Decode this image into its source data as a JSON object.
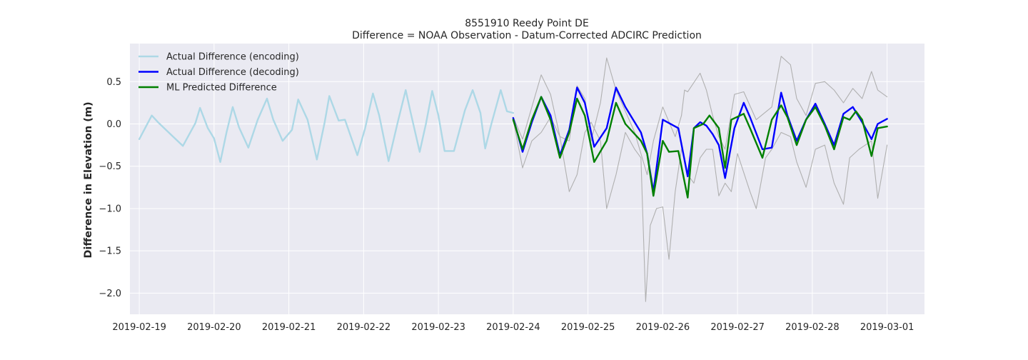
{
  "chart_data": {
    "type": "line",
    "title": "8551910 Reedy Point DE",
    "subtitle": "Difference = NOAA Observation - Datum-Corrected ADCIRC Prediction",
    "xlabel": "",
    "ylabel": "Difference in Elevation (m)",
    "x_unit": "date",
    "xlim": [
      "2019-02-18 21:00",
      "2019-03-01 12:00"
    ],
    "ylim": [
      -2.25,
      0.95
    ],
    "x_tick_labels": [
      "2019-02-19",
      "2019-02-20",
      "2019-02-21",
      "2019-02-22",
      "2019-02-23",
      "2019-02-24",
      "2019-02-25",
      "2019-02-26",
      "2019-02-27",
      "2019-02-28",
      "2019-03-01"
    ],
    "y_ticks": [
      0.5,
      0.0,
      -0.5,
      -1.0,
      -1.5,
      -2.0
    ],
    "y_tick_labels": [
      "0.5",
      "0.0",
      "−0.5",
      "−1.0",
      "−1.5",
      "−2.0"
    ],
    "grid": true,
    "legend_position": "top-left",
    "legend": [
      "Actual Difference (encoding)",
      "Actual Difference (decoding)",
      "ML Predicted Difference"
    ],
    "series": [
      {
        "name": "Actual Difference (encoding)",
        "color": "#add8e6",
        "x": [
          "2019-02-19 00:00",
          "2019-02-19 04:00",
          "2019-02-19 06:00",
          "2019-02-19 10:00",
          "2019-02-19 14:00",
          "2019-02-19 18:00",
          "2019-02-19 19:30",
          "2019-02-19 22:00",
          "2019-02-20 00:00",
          "2019-02-20 02:00",
          "2019-02-20 04:00",
          "2019-02-20 06:00",
          "2019-02-20 08:00",
          "2019-02-20 11:00",
          "2019-02-20 14:00",
          "2019-02-20 17:00",
          "2019-02-20 19:00",
          "2019-02-20 22:00",
          "2019-02-21 01:00",
          "2019-02-21 03:00",
          "2019-02-21 06:00",
          "2019-02-21 09:00",
          "2019-02-21 11:30",
          "2019-02-21 13:00",
          "2019-02-21 16:00",
          "2019-02-21 18:00",
          "2019-02-21 22:00",
          "2019-02-22 00:30",
          "2019-02-22 03:00",
          "2019-02-22 05:00",
          "2019-02-22 08:00",
          "2019-02-22 11:00",
          "2019-02-22 13:30",
          "2019-02-22 15:00",
          "2019-02-22 18:00",
          "2019-02-22 20:00",
          "2019-02-22 22:00",
          "2019-02-23 00:00",
          "2019-02-23 02:00",
          "2019-02-23 05:00",
          "2019-02-23 08:30",
          "2019-02-23 11:00",
          "2019-02-23 13:30",
          "2019-02-23 15:00",
          "2019-02-23 17:00",
          "2019-02-23 20:00",
          "2019-02-23 22:00",
          "2019-02-24 00:00"
        ],
        "y": [
          -0.18,
          0.1,
          0.02,
          -0.12,
          -0.26,
          0.01,
          0.19,
          -0.05,
          -0.17,
          -0.45,
          -0.1,
          0.2,
          -0.04,
          -0.28,
          0.05,
          0.3,
          0.05,
          -0.2,
          -0.07,
          0.29,
          0.05,
          -0.42,
          0.02,
          0.33,
          0.04,
          0.05,
          -0.37,
          -0.05,
          0.36,
          0.1,
          -0.44,
          0.03,
          0.4,
          0.15,
          -0.33,
          0.0,
          0.39,
          0.1,
          -0.32,
          -0.32,
          0.16,
          0.4,
          0.13,
          -0.29,
          0.0,
          0.4,
          0.15,
          0.13
        ]
      },
      {
        "name": "Actual Difference (decoding)",
        "color": "#0000ff",
        "x": [
          "2019-02-24 00:00",
          "2019-02-24 03:00",
          "2019-02-24 06:00",
          "2019-02-24 09:00",
          "2019-02-24 12:00",
          "2019-02-24 15:00",
          "2019-02-24 18:00",
          "2019-02-24 20:30",
          "2019-02-24 23:00",
          "2019-02-25 02:00",
          "2019-02-25 06:00",
          "2019-02-25 09:00",
          "2019-02-25 12:00",
          "2019-02-25 17:00",
          "2019-02-25 19:00",
          "2019-02-25 21:00",
          "2019-02-26 00:00",
          "2019-02-26 05:00",
          "2019-02-26 08:00",
          "2019-02-26 10:00",
          "2019-02-26 12:00",
          "2019-02-26 14:00",
          "2019-02-26 16:00",
          "2019-02-26 18:00",
          "2019-02-26 20:00",
          "2019-02-26 23:00",
          "2019-02-27 02:00",
          "2019-02-27 04:00",
          "2019-02-27 08:00",
          "2019-02-27 11:00",
          "2019-02-27 14:00",
          "2019-02-27 16:00",
          "2019-02-27 19:00",
          "2019-02-27 22:00",
          "2019-02-28 01:00",
          "2019-02-28 04:00",
          "2019-02-28 07:00",
          "2019-02-28 10:00",
          "2019-02-28 13:00",
          "2019-02-28 16:00",
          "2019-02-28 19:00",
          "2019-02-28 21:00",
          "2019-03-01 00:00"
        ],
        "y": [
          0.07,
          -0.33,
          0.02,
          0.32,
          0.1,
          -0.37,
          -0.07,
          0.43,
          0.25,
          -0.27,
          -0.05,
          0.43,
          0.2,
          -0.1,
          -0.35,
          -0.8,
          0.05,
          -0.05,
          -0.62,
          -0.05,
          0.02,
          -0.02,
          -0.12,
          -0.25,
          -0.64,
          -0.05,
          0.25,
          0.08,
          -0.3,
          -0.28,
          0.37,
          0.1,
          -0.2,
          0.05,
          0.24,
          0.0,
          -0.25,
          0.12,
          0.2,
          0.02,
          -0.18,
          0.0,
          0.06
        ]
      },
      {
        "name": "ML Predicted Difference",
        "color": "#008000",
        "x": [
          "2019-02-24 00:00",
          "2019-02-24 03:00",
          "2019-02-24 06:00",
          "2019-02-24 09:00",
          "2019-02-24 12:00",
          "2019-02-24 15:00",
          "2019-02-24 18:00",
          "2019-02-24 20:30",
          "2019-02-24 23:00",
          "2019-02-25 02:00",
          "2019-02-25 06:00",
          "2019-02-25 09:00",
          "2019-02-25 12:00",
          "2019-02-25 17:00",
          "2019-02-25 19:00",
          "2019-02-25 21:00",
          "2019-02-26 00:00",
          "2019-02-26 02:00",
          "2019-02-26 05:00",
          "2019-02-26 08:00",
          "2019-02-26 10:00",
          "2019-02-26 13:00",
          "2019-02-26 15:00",
          "2019-02-26 18:00",
          "2019-02-26 20:00",
          "2019-02-26 22:00",
          "2019-02-27 02:00",
          "2019-02-27 04:00",
          "2019-02-27 08:00",
          "2019-02-27 11:00",
          "2019-02-27 14:00",
          "2019-02-27 16:00",
          "2019-02-27 19:00",
          "2019-02-27 22:00",
          "2019-02-28 01:00",
          "2019-02-28 04:00",
          "2019-02-28 07:00",
          "2019-02-28 10:00",
          "2019-02-28 12:00",
          "2019-02-28 14:00",
          "2019-02-28 16:00",
          "2019-02-28 19:00",
          "2019-02-28 21:00",
          "2019-03-01 00:00"
        ],
        "y": [
          0.05,
          -0.3,
          0.05,
          0.32,
          0.05,
          -0.4,
          -0.1,
          0.3,
          0.1,
          -0.45,
          -0.2,
          0.25,
          0.0,
          -0.2,
          -0.35,
          -0.85,
          -0.2,
          -0.33,
          -0.32,
          -0.87,
          -0.05,
          0.0,
          0.1,
          -0.05,
          -0.52,
          0.05,
          0.12,
          -0.05,
          -0.4,
          0.05,
          0.22,
          0.08,
          -0.25,
          0.05,
          0.2,
          -0.02,
          -0.3,
          0.08,
          0.05,
          0.15,
          0.05,
          -0.38,
          -0.05,
          -0.03
        ]
      },
      {
        "name": "",
        "color": "#b0b0b0",
        "x": [
          "2019-02-24 00:00",
          "2019-02-24 03:00",
          "2019-02-24 06:00",
          "2019-02-24 09:00",
          "2019-02-24 12:00",
          "2019-02-24 15:00",
          "2019-02-24 18:00",
          "2019-02-24 20:30",
          "2019-02-24 23:00",
          "2019-02-25 01:00",
          "2019-02-25 04:00",
          "2019-02-25 06:00",
          "2019-02-25 09:00",
          "2019-02-25 12:00",
          "2019-02-25 15:00",
          "2019-02-25 17:00",
          "2019-02-25 19:00",
          "2019-02-25 21:00",
          "2019-02-26 00:00",
          "2019-02-26 04:00",
          "2019-02-26 06:00",
          "2019-02-26 07:00",
          "2019-02-26 08:00",
          "2019-02-26 12:00",
          "2019-02-26 14:00",
          "2019-02-26 16:00",
          "2019-02-26 18:00",
          "2019-02-26 20:00",
          "2019-02-26 23:00",
          "2019-02-27 02:00",
          "2019-02-27 06:00",
          "2019-02-27 11:00",
          "2019-02-27 14:00",
          "2019-02-27 17:00",
          "2019-02-27 19:00",
          "2019-02-27 22:00",
          "2019-02-28 01:00",
          "2019-02-28 04:00",
          "2019-02-28 07:00",
          "2019-02-28 10:00",
          "2019-02-28 13:00",
          "2019-02-28 16:00",
          "2019-02-28 19:00",
          "2019-02-28 21:00",
          "2019-03-01 00:00"
        ],
        "y": [
          0.08,
          -0.18,
          0.2,
          0.58,
          0.35,
          -0.15,
          -0.2,
          0.45,
          0.3,
          -0.2,
          0.25,
          0.78,
          0.4,
          0.15,
          -0.1,
          -0.35,
          -0.6,
          -0.2,
          0.2,
          -0.15,
          0.1,
          0.4,
          0.38,
          0.6,
          0.4,
          0.1,
          -0.15,
          -0.3,
          0.35,
          0.38,
          0.05,
          0.2,
          0.8,
          0.7,
          0.3,
          0.1,
          0.48,
          0.5,
          0.4,
          0.25,
          0.42,
          0.3,
          0.62,
          0.4,
          0.32
        ]
      },
      {
        "name": "",
        "color": "#b0b0b0",
        "x": [
          "2019-02-24 00:00",
          "2019-02-24 03:00",
          "2019-02-24 06:00",
          "2019-02-24 09:00",
          "2019-02-24 12:00",
          "2019-02-24 15:00",
          "2019-02-24 18:00",
          "2019-02-24 20:30",
          "2019-02-24 23:00",
          "2019-02-25 01:00",
          "2019-02-25 04:00",
          "2019-02-25 06:00",
          "2019-02-25 09:00",
          "2019-02-25 12:00",
          "2019-02-25 15:00",
          "2019-02-25 17:00",
          "2019-02-25 18:30",
          "2019-02-25 20:00",
          "2019-02-25 21:00",
          "2019-02-25 22:00",
          "2019-02-26 00:00",
          "2019-02-26 02:00",
          "2019-02-26 04:00",
          "2019-02-26 06:00",
          "2019-02-26 07:00",
          "2019-02-26 08:00",
          "2019-02-26 10:00",
          "2019-02-26 12:00",
          "2019-02-26 14:00",
          "2019-02-26 16:00",
          "2019-02-26 18:00",
          "2019-02-26 20:00",
          "2019-02-26 22:00",
          "2019-02-27 00:00",
          "2019-02-27 04:00",
          "2019-02-27 06:00",
          "2019-02-27 09:00",
          "2019-02-27 11:00",
          "2019-02-27 14:00",
          "2019-02-27 17:00",
          "2019-02-27 19:00",
          "2019-02-27 22:00",
          "2019-02-28 01:00",
          "2019-02-28 04:00",
          "2019-02-28 07:00",
          "2019-02-28 10:00",
          "2019-02-28 12:00",
          "2019-02-28 15:00",
          "2019-02-28 17:00",
          "2019-02-28 19:00",
          "2019-02-28 21:00",
          "2019-03-01 00:00"
        ],
        "y": [
          0.05,
          -0.52,
          -0.2,
          -0.1,
          0.08,
          -0.15,
          -0.8,
          -0.6,
          -0.1,
          0.02,
          -0.2,
          -1.0,
          -0.6,
          -0.1,
          -0.3,
          -0.4,
          -2.1,
          -1.2,
          -1.1,
          -1.0,
          -0.98,
          -1.6,
          -0.8,
          -0.3,
          -0.4,
          -0.6,
          -0.7,
          -0.4,
          -0.3,
          -0.3,
          -0.85,
          -0.7,
          -0.8,
          -0.35,
          -0.8,
          -1.0,
          -0.4,
          -0.3,
          -0.1,
          -0.15,
          -0.45,
          -0.75,
          -0.3,
          -0.25,
          -0.7,
          -0.95,
          -0.4,
          -0.3,
          -0.25,
          -0.2,
          -0.88,
          -0.25
        ]
      }
    ]
  }
}
